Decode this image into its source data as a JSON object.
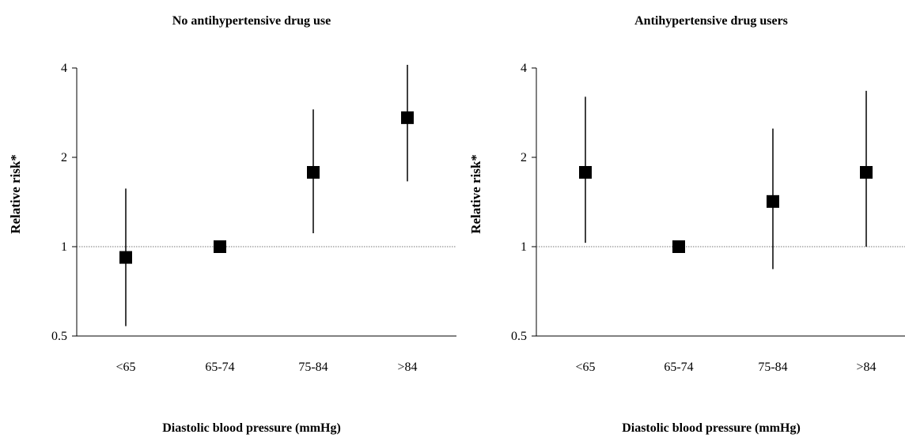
{
  "chart_data": [
    {
      "type": "scatter",
      "title": "No antihypertensive drug use",
      "xlabel": "Diastolic blood pressure (mmHg)",
      "ylabel": "Relative risk*",
      "y_scale": "log2",
      "ylim": [
        0.5,
        4
      ],
      "yticks": [
        "0.5",
        "1",
        "2",
        "4"
      ],
      "ytick_values": [
        0.5,
        1,
        2,
        4
      ],
      "reference_line": 1,
      "categories": [
        "<65",
        "65-74",
        "75-84",
        ">84"
      ],
      "values": [
        0.92,
        1.0,
        1.78,
        2.72
      ],
      "ci_lower": [
        0.54,
        null,
        1.11,
        1.66
      ],
      "ci_upper": [
        1.57,
        null,
        2.9,
        4.1
      ]
    },
    {
      "type": "scatter",
      "title": "Antihypertensive drug users",
      "xlabel": "Diastolic blood pressure (mmHg)",
      "ylabel": "Relative risk*",
      "y_scale": "log2",
      "ylim": [
        0.5,
        4
      ],
      "yticks": [
        "0.5",
        "1",
        "2",
        "4"
      ],
      "ytick_values": [
        0.5,
        1,
        2,
        4
      ],
      "reference_line": 1,
      "categories": [
        "<65",
        "65-74",
        "75-84",
        ">84"
      ],
      "values": [
        1.78,
        1.0,
        1.42,
        1.78
      ],
      "ci_lower": [
        1.03,
        null,
        0.84,
        1.0
      ],
      "ci_upper": [
        3.2,
        null,
        2.5,
        3.35
      ]
    }
  ]
}
